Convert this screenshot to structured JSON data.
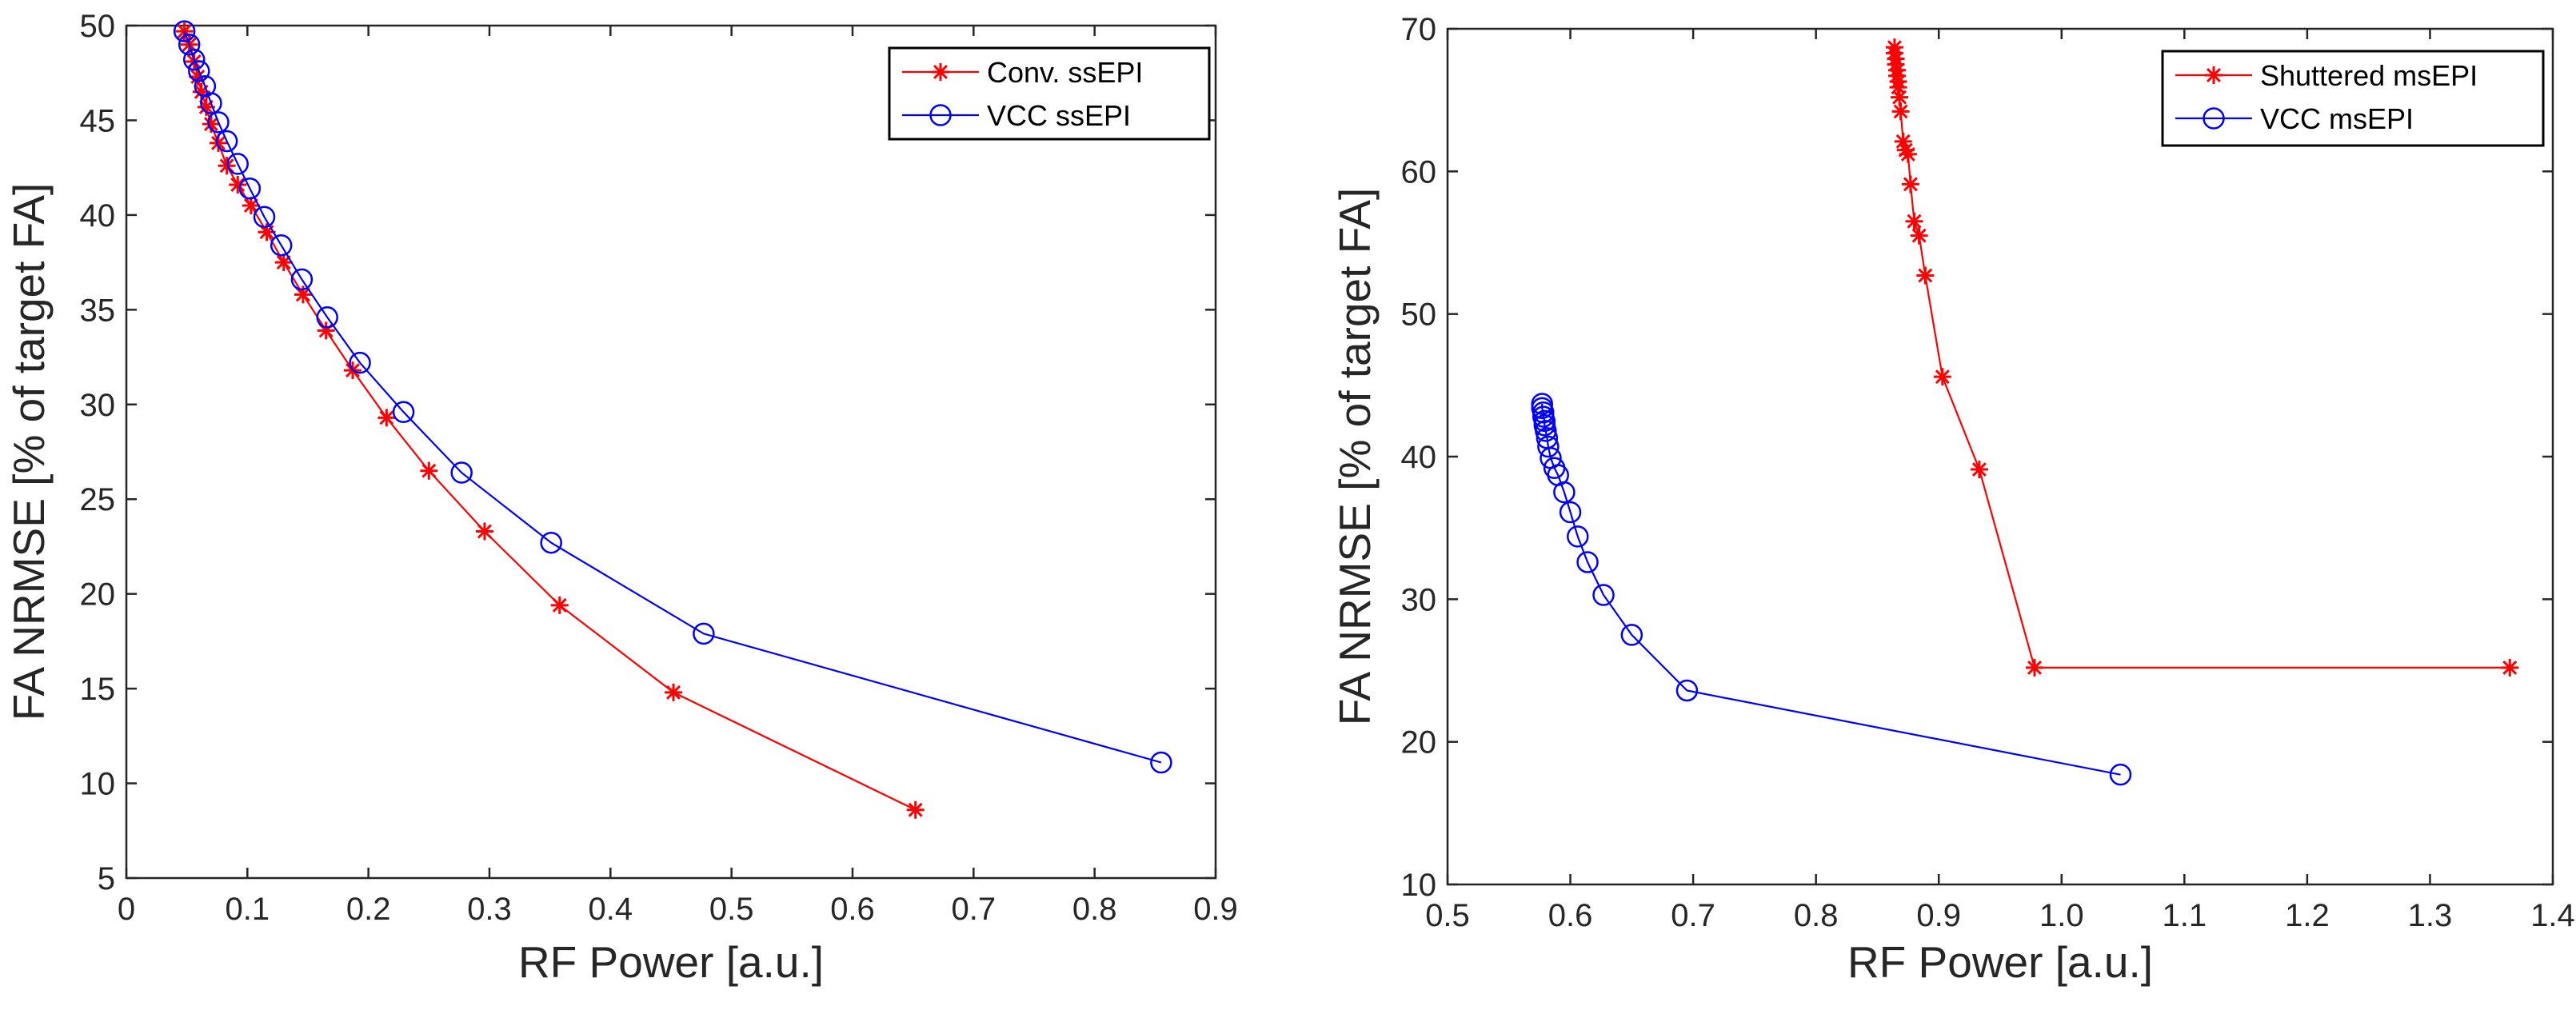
{
  "chart_data": [
    {
      "type": "line",
      "xlabel": "RF Power [a.u.]",
      "ylabel": "FA NRMSE [% of target FA]",
      "xlim": [
        0,
        0.9
      ],
      "ylim": [
        5,
        50
      ],
      "xticks": [
        "0",
        "0.1",
        "0.2",
        "0.3",
        "0.4",
        "0.5",
        "0.6",
        "0.7",
        "0.8",
        "0.9"
      ],
      "yticks": [
        "5",
        "10",
        "15",
        "20",
        "25",
        "30",
        "35",
        "40",
        "45",
        "50"
      ],
      "legend_position": "top-right",
      "grid": false,
      "series": [
        {
          "name": "Conv. ssEPI",
          "color": "#ff0000",
          "marker": "asterisk",
          "x": [
            0.048,
            0.052,
            0.056,
            0.059,
            0.062,
            0.066,
            0.07,
            0.076,
            0.083,
            0.092,
            0.103,
            0.116,
            0.13,
            0.146,
            0.165,
            0.187,
            0.215,
            0.25,
            0.296,
            0.358,
            0.452,
            0.652
          ],
          "y": [
            49.7,
            49.0,
            48.1,
            47.3,
            46.5,
            45.7,
            44.8,
            43.8,
            42.6,
            41.6,
            40.5,
            39.1,
            37.5,
            35.8,
            33.9,
            31.8,
            29.3,
            26.5,
            23.3,
            19.4,
            14.8,
            8.6
          ]
        },
        {
          "name": "VCC ssEPI",
          "color": "#0000ff",
          "marker": "circle",
          "x": [
            0.048,
            0.052,
            0.056,
            0.06,
            0.065,
            0.07,
            0.076,
            0.083,
            0.092,
            0.102,
            0.114,
            0.128,
            0.145,
            0.166,
            0.193,
            0.229,
            0.277,
            0.351,
            0.477,
            0.855
          ],
          "y": [
            49.7,
            49.0,
            48.2,
            47.6,
            46.8,
            45.9,
            44.9,
            43.9,
            42.7,
            41.4,
            39.9,
            38.4,
            36.6,
            34.6,
            32.2,
            29.6,
            26.4,
            22.7,
            17.9,
            11.1
          ]
        }
      ]
    },
    {
      "type": "line",
      "xlabel": "RF Power [a.u.]",
      "ylabel": "FA NRMSE [% of target FA]",
      "xlim": [
        0.5,
        1.4
      ],
      "ylim": [
        10,
        70
      ],
      "xticks": [
        "0.5",
        "0.6",
        "0.7",
        "0.8",
        "0.9",
        "1.0",
        "1.1",
        "1.2",
        "1.3",
        "1.4"
      ],
      "yticks": [
        "10",
        "20",
        "30",
        "40",
        "50",
        "60",
        "70"
      ],
      "legend_position": "top-right",
      "grid": false,
      "series": [
        {
          "name": "Shuttered msEPI",
          "color": "#ff0000",
          "marker": "asterisk",
          "x": [
            0.864,
            0.864,
            0.865,
            0.865,
            0.866,
            0.866,
            0.867,
            0.867,
            0.868,
            0.869,
            0.871,
            0.873,
            0.875,
            0.877,
            0.88,
            0.884,
            0.889,
            0.903,
            0.933,
            0.978,
            1.365
          ],
          "y": [
            68.7,
            68.3,
            67.9,
            67.5,
            67.1,
            66.7,
            66.3,
            65.9,
            65.2,
            64.2,
            62.1,
            61.5,
            61.2,
            59.1,
            56.5,
            55.5,
            52.7,
            45.6,
            39.1,
            25.2,
            25.2
          ]
        },
        {
          "name": "VCC msEPI",
          "color": "#0000ff",
          "marker": "circle",
          "x": [
            0.577,
            0.577,
            0.578,
            0.578,
            0.579,
            0.579,
            0.58,
            0.581,
            0.582,
            0.584,
            0.587,
            0.59,
            0.595,
            0.6,
            0.606,
            0.614,
            0.627,
            0.65,
            0.695,
            1.048
          ],
          "y": [
            43.7,
            43.4,
            43.1,
            42.8,
            42.5,
            42.2,
            41.8,
            41.3,
            40.7,
            39.9,
            39.2,
            38.7,
            37.5,
            36.1,
            34.4,
            32.6,
            30.3,
            27.5,
            23.6,
            17.7
          ]
        }
      ]
    }
  ]
}
